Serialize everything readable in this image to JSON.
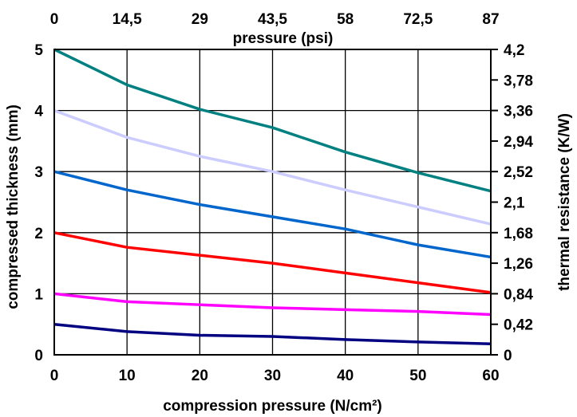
{
  "chart_data": {
    "type": "line",
    "title": "",
    "xlabel": "compression pressure (N/cm²)",
    "x2label": "pressure (psi)",
    "ylabel": "compressed thickness (mm)",
    "y2label": "thermal resistance (K/W)",
    "xlim": [
      0,
      60
    ],
    "ylim": [
      0,
      5
    ],
    "y2lim": [
      0,
      4.2
    ],
    "grid": true,
    "x_ticks": [
      "0",
      "10",
      "20",
      "30",
      "40",
      "50",
      "60"
    ],
    "x2_ticks": [
      "0",
      "14,5",
      "29",
      "43,5",
      "58",
      "72,5",
      "87"
    ],
    "y_ticks": [
      "0",
      "1",
      "2",
      "3",
      "4",
      "5"
    ],
    "y2_ticks": [
      "0",
      "0,42",
      "0,84",
      "1,26",
      "1,68",
      "2,1",
      "2,52",
      "2,94",
      "3,36",
      "3,78",
      "4,2"
    ],
    "x": [
      0,
      10,
      20,
      30,
      40,
      50,
      60
    ],
    "series": [
      {
        "color": "#008080",
        "values": [
          5.0,
          4.42,
          4.02,
          3.72,
          3.32,
          2.98,
          2.68
        ]
      },
      {
        "color": "#CCCCFF",
        "values": [
          4.0,
          3.56,
          3.25,
          3.0,
          2.7,
          2.42,
          2.14
        ]
      },
      {
        "color": "#0066CC",
        "values": [
          3.0,
          2.7,
          2.46,
          2.26,
          2.06,
          1.8,
          1.6
        ]
      },
      {
        "color": "#FF0000",
        "values": [
          2.0,
          1.76,
          1.63,
          1.5,
          1.34,
          1.18,
          1.02
        ]
      },
      {
        "color": "#FF00FF",
        "values": [
          1.0,
          0.87,
          0.82,
          0.77,
          0.74,
          0.71,
          0.66
        ]
      },
      {
        "color": "#000080",
        "values": [
          0.5,
          0.38,
          0.32,
          0.3,
          0.25,
          0.21,
          0.18
        ]
      }
    ]
  }
}
